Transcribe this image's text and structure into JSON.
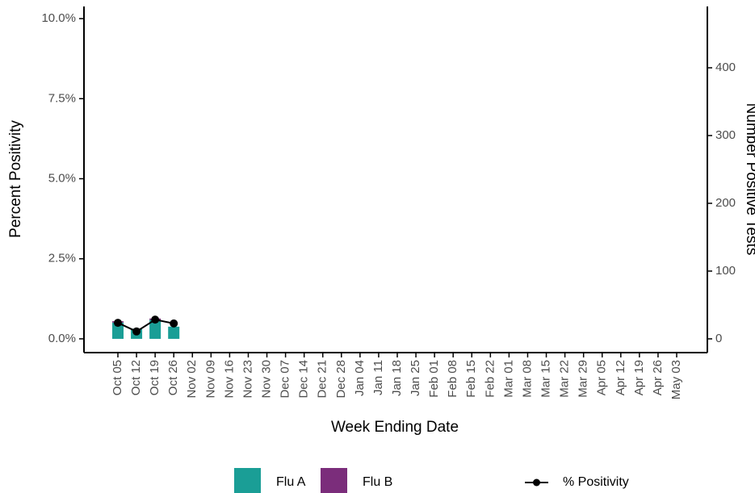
{
  "chart_data": {
    "type": "bar",
    "x_label": "Week Ending Date",
    "y_label": "Percent Positivity",
    "y2_label": "Number Positive Tests",
    "categories": [
      "Oct 05",
      "Oct 12",
      "Oct 19",
      "Oct 26",
      "Nov 02",
      "Nov 09",
      "Nov 16",
      "Nov 23",
      "Nov 30",
      "Dec 07",
      "Dec 14",
      "Dec 21",
      "Dec 28",
      "Jan 04",
      "Jan 11",
      "Jan 18",
      "Jan 25",
      "Feb 01",
      "Feb 08",
      "Feb 15",
      "Feb 22",
      "Mar 01",
      "Mar 08",
      "Mar 15",
      "Mar 22",
      "Mar 29",
      "Apr 05",
      "Apr 12",
      "Apr 19",
      "Apr 26",
      "May 03"
    ],
    "series": [
      {
        "name": "Flu A",
        "type": "bar",
        "axis": "y2",
        "color": "#1a9e96",
        "values": [
          24,
          15,
          28,
          18,
          null,
          null,
          null,
          null,
          null,
          null,
          null,
          null,
          null,
          null,
          null,
          null,
          null,
          null,
          null,
          null,
          null,
          null,
          null,
          null,
          null,
          null,
          null,
          null,
          null,
          null,
          null
        ]
      },
      {
        "name": "Flu B",
        "type": "bar",
        "axis": "y2",
        "color": "#7b2d7b",
        "values": [
          2,
          0,
          2,
          0,
          null,
          null,
          null,
          null,
          null,
          null,
          null,
          null,
          null,
          null,
          null,
          null,
          null,
          null,
          null,
          null,
          null,
          null,
          null,
          null,
          null,
          null,
          null,
          null,
          null,
          null,
          null
        ]
      },
      {
        "name": "% Positivity",
        "type": "line",
        "axis": "y",
        "color": "#000000",
        "values": [
          0.5,
          0.23,
          0.6,
          0.48,
          null,
          null,
          null,
          null,
          null,
          null,
          null,
          null,
          null,
          null,
          null,
          null,
          null,
          null,
          null,
          null,
          null,
          null,
          null,
          null,
          null,
          null,
          null,
          null,
          null,
          null,
          null
        ]
      }
    ],
    "ylim": [
      -0.43,
      10.38
    ],
    "yticks": [
      {
        "value": 0,
        "label": "0.0%"
      },
      {
        "value": 2.5,
        "label": "2.5%"
      },
      {
        "value": 5,
        "label": "5.0%"
      },
      {
        "value": 7.5,
        "label": "7.5%"
      },
      {
        "value": 10,
        "label": "10.0%"
      }
    ],
    "y2lim": [
      -20.3,
      490.5
    ],
    "y2ticks": [
      0,
      100,
      200,
      300,
      400
    ],
    "legend": "bottom"
  }
}
